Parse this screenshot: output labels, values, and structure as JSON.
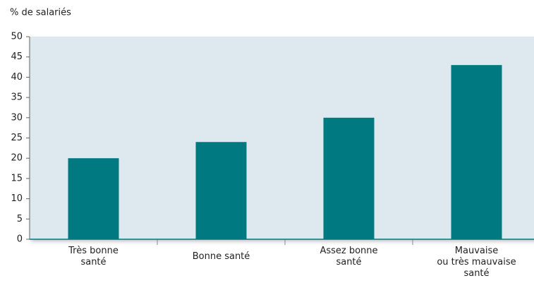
{
  "chart_data": {
    "type": "bar",
    "y_label": "% de salariés",
    "categories": [
      "Très bonne\nsanté",
      "Bonne santé",
      "Assez bonne\nsanté",
      "Mauvaise\nou très mauvaise\nsanté"
    ],
    "values": [
      20,
      24,
      30,
      43
    ],
    "color": "#007a80",
    "ylim": [
      0,
      50
    ],
    "yticks": [
      0,
      5,
      10,
      15,
      20,
      25,
      30,
      35,
      40,
      45,
      50
    ],
    "grid": false
  }
}
